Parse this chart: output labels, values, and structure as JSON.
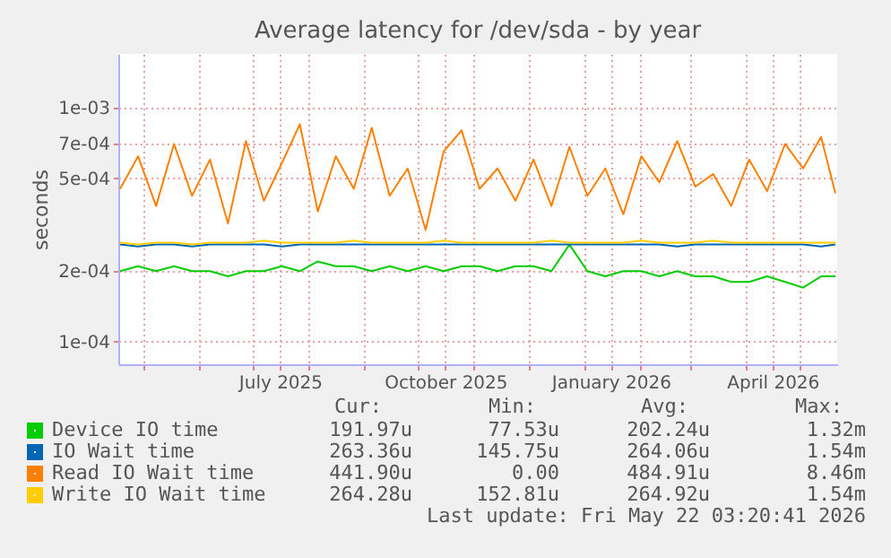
{
  "chart_data": {
    "type": "line",
    "title": "Average latency for /dev/sda - by year",
    "ylabel": "seconds",
    "x": [
      "2025-04-18",
      "2025-04-28",
      "2025-05-08",
      "2025-05-18",
      "2025-05-28",
      "2025-06-07",
      "2025-06-17",
      "2025-06-27",
      "2025-07-07",
      "2025-07-17",
      "2025-07-27",
      "2025-08-06",
      "2025-08-16",
      "2025-08-26",
      "2025-09-05",
      "2025-09-15",
      "2025-09-25",
      "2025-10-05",
      "2025-10-15",
      "2025-10-25",
      "2025-11-04",
      "2025-11-14",
      "2025-11-24",
      "2025-12-04",
      "2025-12-14",
      "2025-12-24",
      "2026-01-03",
      "2026-01-13",
      "2026-01-23",
      "2026-02-02",
      "2026-02-12",
      "2026-02-22",
      "2026-03-04",
      "2026-03-14",
      "2026-03-24",
      "2026-04-03",
      "2026-04-13",
      "2026-04-23",
      "2026-05-03",
      "2026-05-13",
      "2026-05-21"
    ],
    "series": [
      {
        "name": "Device IO time",
        "color": "#00cc00",
        "values": [
          0.0002,
          0.00021,
          0.0002,
          0.00021,
          0.0002,
          0.0002,
          0.00019,
          0.0002,
          0.0002,
          0.00021,
          0.0002,
          0.00022,
          0.00021,
          0.00021,
          0.0002,
          0.00021,
          0.0002,
          0.00021,
          0.0002,
          0.00021,
          0.00021,
          0.0002,
          0.00021,
          0.00021,
          0.0002,
          0.00026,
          0.0002,
          0.00019,
          0.0002,
          0.0002,
          0.00019,
          0.0002,
          0.00019,
          0.00019,
          0.00018,
          0.00018,
          0.00019,
          0.00018,
          0.00017,
          0.00019,
          0.00019
        ]
      },
      {
        "name": "IO Wait time",
        "color": "#0066b3",
        "values": [
          0.00026,
          0.000255,
          0.00026,
          0.00026,
          0.000255,
          0.00026,
          0.00026,
          0.00026,
          0.00026,
          0.000255,
          0.00026,
          0.00026,
          0.00026,
          0.00026,
          0.00026,
          0.00026,
          0.00026,
          0.00026,
          0.00026,
          0.00026,
          0.00026,
          0.00026,
          0.00026,
          0.00026,
          0.00026,
          0.00026,
          0.00026,
          0.00026,
          0.00026,
          0.00026,
          0.00026,
          0.000255,
          0.00026,
          0.00026,
          0.00026,
          0.00026,
          0.00026,
          0.00026,
          0.00026,
          0.000255,
          0.00026
        ]
      },
      {
        "name": "Read IO Wait time",
        "color": "#ff8000",
        "values": [
          0.00045,
          0.00062,
          0.00038,
          0.0007,
          0.00042,
          0.0006,
          0.00032,
          0.00072,
          0.0004,
          0.00058,
          0.00085,
          0.00036,
          0.00062,
          0.00045,
          0.00082,
          0.00042,
          0.00055,
          0.0003,
          0.00065,
          0.0008,
          0.00045,
          0.00055,
          0.0004,
          0.0006,
          0.00038,
          0.00068,
          0.00042,
          0.00055,
          0.00035,
          0.00062,
          0.00048,
          0.00072,
          0.00046,
          0.00052,
          0.00038,
          0.0006,
          0.00044,
          0.0007,
          0.00055,
          0.00075,
          0.00043
        ]
      },
      {
        "name": "Write IO Wait time",
        "color": "#ffcc00",
        "values": [
          0.000265,
          0.00026,
          0.000265,
          0.000265,
          0.00026,
          0.000265,
          0.000265,
          0.000265,
          0.00027,
          0.000265,
          0.000265,
          0.000265,
          0.000265,
          0.00027,
          0.000265,
          0.000265,
          0.000265,
          0.000265,
          0.00027,
          0.000265,
          0.000265,
          0.000265,
          0.000265,
          0.000265,
          0.00027,
          0.000265,
          0.000265,
          0.000265,
          0.000265,
          0.00027,
          0.000265,
          0.000265,
          0.000265,
          0.00027,
          0.000265,
          0.000265,
          0.000265,
          0.000265,
          0.000265,
          0.000265,
          0.000265
        ]
      }
    ],
    "xlim": [
      "2025-04-17",
      "2026-05-22"
    ],
    "xticks": [
      {
        "value": "2025-05-01",
        "label": null
      },
      {
        "value": "2025-06-01",
        "label": null
      },
      {
        "value": "2025-07-01",
        "label": null
      },
      {
        "value": "2025-07-16",
        "label": "July 2025"
      },
      {
        "value": "2025-08-01",
        "label": null
      },
      {
        "value": "2025-09-01",
        "label": null
      },
      {
        "value": "2025-10-01",
        "label": null
      },
      {
        "value": "2025-10-16",
        "label": "October 2025"
      },
      {
        "value": "2025-11-01",
        "label": null
      },
      {
        "value": "2025-12-01",
        "label": null
      },
      {
        "value": "2026-01-01",
        "label": null
      },
      {
        "value": "2026-01-16",
        "label": "January 2026"
      },
      {
        "value": "2026-02-01",
        "label": null
      },
      {
        "value": "2026-03-01",
        "label": null
      },
      {
        "value": "2026-04-01",
        "label": null
      },
      {
        "value": "2026-04-16",
        "label": "April 2026"
      },
      {
        "value": "2026-05-01",
        "label": null
      }
    ],
    "ylim": [
      8e-05,
      0.0017
    ],
    "log": true,
    "yticks": [
      {
        "value": 0.0001,
        "label": "1e-04"
      },
      {
        "value": 0.0002,
        "label": "2e-04"
      },
      {
        "value": 0.0005,
        "label": "5e-04"
      },
      {
        "value": 0.0007,
        "label": "7e-04"
      },
      {
        "value": 0.001,
        "label": "1e-03"
      }
    ],
    "grid": true,
    "legend": "bottom",
    "line_style": "solid",
    "marker": "none",
    "annotations": [
      "Cur:",
      "Min:",
      "Avg:",
      "Max:",
      "191.97u",
      "77.53u",
      "202.24u",
      "1.32m",
      "263.36u",
      "145.75u",
      "264.06u",
      "1.54m",
      "441.90u",
      "0.00",
      "484.91u",
      "8.46m",
      "264.28u",
      "152.81u",
      "264.92u",
      "1.54m",
      "Last update: Fri May 22 03:20:41 2026"
    ]
  }
}
